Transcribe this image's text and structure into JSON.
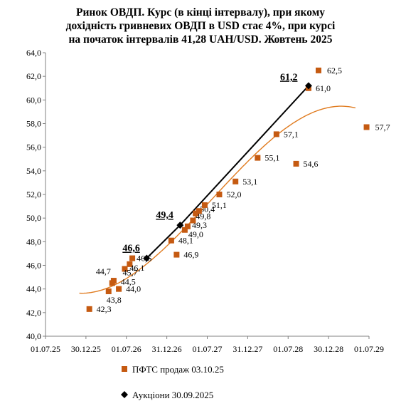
{
  "chart_data": {
    "type": "scatter",
    "title_lines": [
      "Ринок ОВДП. Курс (в кінці інтервалу), при якому",
      "дохідність гривневих ОВДП в USD стає  4%, при курсі",
      "на початок інтервалів 41,28 UAH/USD. Жовтень 2025"
    ],
    "x_ticks": [
      "01.07.25",
      "30.12.25",
      "01.07.26",
      "31.12.26",
      "01.07.27",
      "31.12.27",
      "01.07.28",
      "30.12.28",
      "01.07.29"
    ],
    "y_ticks": [
      "40,0",
      "42,0",
      "44,0",
      "46,0",
      "48,0",
      "50,0",
      "52,0",
      "54,0",
      "56,0",
      "58,0",
      "60,0",
      "62,0",
      "64,0"
    ],
    "ylim": [
      40,
      64
    ],
    "series": [
      {
        "name": "ПФТС  продаж 03.10.25",
        "color": "#C55A11",
        "points": [
          {
            "x": "2026-01-15",
            "y": 42.3,
            "label": "42,3"
          },
          {
            "x": "2026-04-12",
            "y": 43.8,
            "label": "43,8"
          },
          {
            "x": "2026-04-28",
            "y": 44.5,
            "label": "44,5"
          },
          {
            "x": "2026-05-05",
            "y": 44.7,
            "label": "44,7"
          },
          {
            "x": "2026-05-28",
            "y": 44.0,
            "label": "44,0"
          },
          {
            "x": "2026-06-24",
            "y": 45.7,
            "label": "45,7"
          },
          {
            "x": "2026-07-16",
            "y": 46.1,
            "label": "46,1"
          },
          {
            "x": "2026-07-28",
            "y": 46.6,
            "label": "46,6"
          },
          {
            "x": "2027-01-20",
            "y": 48.1,
            "label": "48,1"
          },
          {
            "x": "2027-02-13",
            "y": 46.9,
            "label": "46,9"
          },
          {
            "x": "2027-03-22",
            "y": 49.0,
            "label": "49,0"
          },
          {
            "x": "2027-04-04",
            "y": 49.3,
            "label": "49,3"
          },
          {
            "x": "2027-04-28",
            "y": 49.8,
            "label": "49,8"
          },
          {
            "x": "2027-05-10",
            "y": 50.4,
            "label": "50,4"
          },
          {
            "x": "2027-05-25",
            "y": 50.6,
            "label": ""
          },
          {
            "x": "2027-06-20",
            "y": 51.1,
            "label": "51,1"
          },
          {
            "x": "2027-08-25",
            "y": 52.0,
            "label": "52,0"
          },
          {
            "x": "2027-11-06",
            "y": 53.1,
            "label": "53,1"
          },
          {
            "x": "2028-02-14",
            "y": 55.1,
            "label": "55,1"
          },
          {
            "x": "2028-05-09",
            "y": 57.1,
            "label": "57,1"
          },
          {
            "x": "2028-08-06",
            "y": 54.6,
            "label": "54,6"
          },
          {
            "x": "2028-10-01",
            "y": 61.0,
            "label": "61,0"
          },
          {
            "x": "2028-11-15",
            "y": 62.5,
            "label": "62,5"
          },
          {
            "x": "2029-06-20",
            "y": 57.7,
            "label": "57,7"
          }
        ]
      },
      {
        "name": "Аукціони 30.09.2025",
        "color": "#000000",
        "points": [
          {
            "x": "2026-10-01",
            "y": 46.6,
            "label": "46,6"
          },
          {
            "x": "2027-03-01",
            "y": 49.4,
            "label": "49,4"
          },
          {
            "x": "2028-10-01",
            "y": 61.2,
            "label": "61,2"
          }
        ]
      }
    ],
    "trendline": {
      "type": "polynomial",
      "color": "#E07B1F"
    },
    "legend": {
      "position": "bottom"
    },
    "grid": {
      "x": false,
      "y": false
    }
  }
}
